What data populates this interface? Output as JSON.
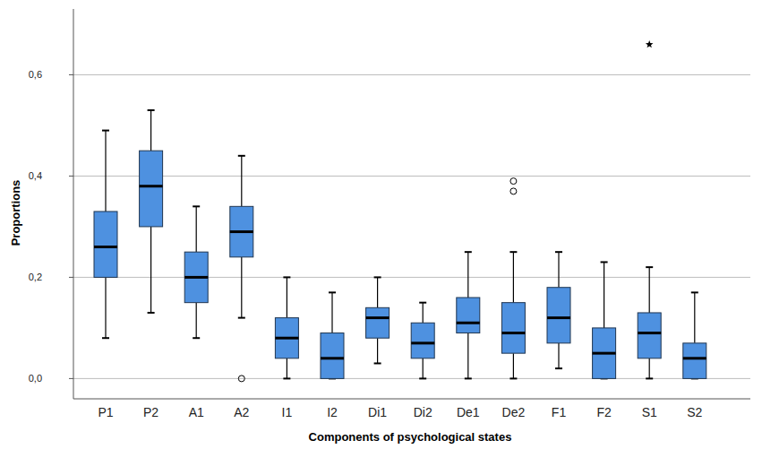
{
  "chart_data": {
    "type": "box",
    "x_label": "Components of psychological states",
    "y_label": "Proportions",
    "categories": [
      "P1",
      "P2",
      "A1",
      "A2",
      "I1",
      "I2",
      "Di1",
      "Di2",
      "De1",
      "De2",
      "F1",
      "F2",
      "S1",
      "S2"
    ],
    "min": [
      0.08,
      0.13,
      0.08,
      0.12,
      0.0,
      0.0,
      0.03,
      0.0,
      0.0,
      0.0,
      0.02,
      0.0,
      0.0,
      0.0
    ],
    "q1": [
      0.2,
      0.3,
      0.15,
      0.24,
      0.04,
      0.0,
      0.08,
      0.04,
      0.09,
      0.05,
      0.07,
      0.0,
      0.04,
      0.0
    ],
    "median": [
      0.26,
      0.38,
      0.2,
      0.29,
      0.08,
      0.04,
      0.12,
      0.07,
      0.11,
      0.09,
      0.12,
      0.05,
      0.09,
      0.04
    ],
    "q3": [
      0.33,
      0.45,
      0.25,
      0.34,
      0.12,
      0.09,
      0.14,
      0.11,
      0.16,
      0.15,
      0.18,
      0.1,
      0.13,
      0.07
    ],
    "max": [
      0.49,
      0.53,
      0.34,
      0.44,
      0.2,
      0.17,
      0.2,
      0.15,
      0.25,
      0.25,
      0.25,
      0.23,
      0.22,
      0.17
    ],
    "outliers": [
      [],
      [],
      [],
      [
        0.0
      ],
      [],
      [],
      [],
      [],
      [],
      [
        0.39,
        0.37
      ],
      [],
      [],
      [],
      []
    ],
    "extremes": [
      [],
      [],
      [],
      [],
      [],
      [],
      [],
      [],
      [],
      [],
      [],
      [],
      [
        0.66
      ],
      []
    ],
    "color": "#4e91e0",
    "ylim": [
      -0.04,
      0.73
    ],
    "yticks": [
      {
        "value": 0,
        "label": "0,0"
      },
      {
        "value": 0.2,
        "label": "0,2"
      },
      {
        "value": 0.4,
        "label": "0,4"
      },
      {
        "value": 0.6,
        "label": "0,6"
      }
    ],
    "grid": true
  }
}
